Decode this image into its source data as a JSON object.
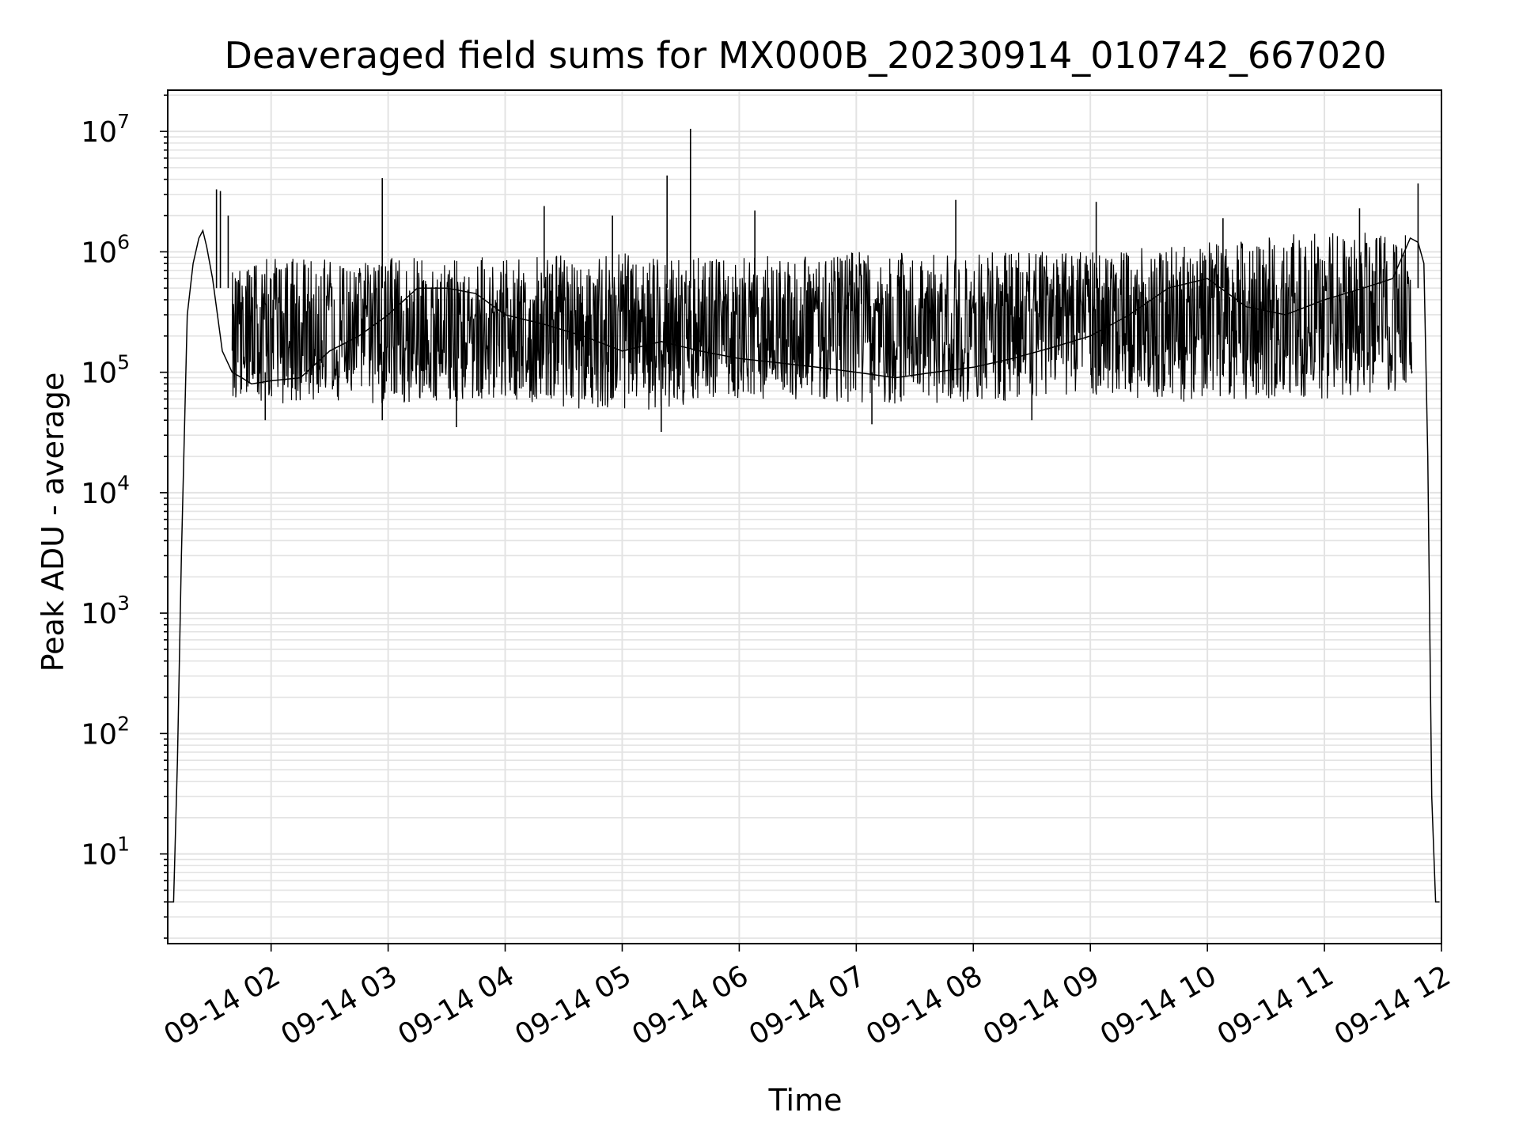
{
  "chart_data": {
    "type": "line",
    "title": "Deaveraged field sums for MX000B_20230914_010742_667020",
    "xlabel": "Time",
    "ylabel": "Peak ADU - average",
    "y_scale": "log",
    "ylim": [
      1.8,
      22000000
    ],
    "xlim": [
      "2023-09-14 01:07",
      "2023-09-14 12:00"
    ],
    "grid": true,
    "legend": "none",
    "line_color": "#000000",
    "x_tick_labels": [
      "09-14 02",
      "09-14 03",
      "09-14 04",
      "09-14 05",
      "09-14 06",
      "09-14 07",
      "09-14 08",
      "09-14 09",
      "09-14 10",
      "09-14 11",
      "09-14 12"
    ],
    "x_tick_times": [
      "2023-09-14 02:00",
      "2023-09-14 03:00",
      "2023-09-14 04:00",
      "2023-09-14 05:00",
      "2023-09-14 06:00",
      "2023-09-14 07:00",
      "2023-09-14 08:00",
      "2023-09-14 09:00",
      "2023-09-14 10:00",
      "2023-09-14 11:00",
      "2023-09-14 12:00"
    ],
    "y_ticks": [
      {
        "value": 10,
        "base": "10",
        "exp": "1"
      },
      {
        "value": 100,
        "base": "10",
        "exp": "2"
      },
      {
        "value": 1000,
        "base": "10",
        "exp": "3"
      },
      {
        "value": 10000,
        "base": "10",
        "exp": "4"
      },
      {
        "value": 100000,
        "base": "10",
        "exp": "5"
      },
      {
        "value": 1000000,
        "base": "10",
        "exp": "6"
      },
      {
        "value": 10000000,
        "base": "10",
        "exp": "7"
      }
    ],
    "series": [
      {
        "times": [
          "2023-09-14 01:07",
          "2023-09-14 01:08",
          "2023-09-14 01:10",
          "2023-09-14 01:12",
          "2023-09-14 01:14",
          "2023-09-14 01:17",
          "2023-09-14 01:20",
          "2023-09-14 01:23",
          "2023-09-14 01:25",
          "2023-09-14 01:27",
          "2023-09-14 01:30",
          "2023-09-14 01:35",
          "2023-09-14 01:40",
          "2023-09-14 01:45",
          "2023-09-14 01:50",
          "2023-09-14 02:00",
          "2023-09-14 02:15",
          "2023-09-14 02:30",
          "2023-09-14 02:45",
          "2023-09-14 03:00",
          "2023-09-14 03:15",
          "2023-09-14 03:30",
          "2023-09-14 03:45",
          "2023-09-14 04:00",
          "2023-09-14 04:20",
          "2023-09-14 04:40",
          "2023-09-14 05:00",
          "2023-09-14 05:20",
          "2023-09-14 05:40",
          "2023-09-14 06:00",
          "2023-09-14 06:20",
          "2023-09-14 06:40",
          "2023-09-14 07:00",
          "2023-09-14 07:20",
          "2023-09-14 07:40",
          "2023-09-14 08:00",
          "2023-09-14 08:20",
          "2023-09-14 08:40",
          "2023-09-14 09:00",
          "2023-09-14 09:20",
          "2023-09-14 09:40",
          "2023-09-14 10:00",
          "2023-09-14 10:20",
          "2023-09-14 10:40",
          "2023-09-14 11:00",
          "2023-09-14 11:20",
          "2023-09-14 11:35",
          "2023-09-14 11:44",
          "2023-09-14 11:48",
          "2023-09-14 11:51",
          "2023-09-14 11:53",
          "2023-09-14 11:55",
          "2023-09-14 11:57",
          "2023-09-14 11:59"
        ],
        "values": [
          4,
          4,
          4,
          60,
          3000,
          300000,
          800000,
          1300000,
          1500000,
          1100000,
          600000,
          150000,
          100000,
          90000,
          80000,
          85000,
          90000,
          150000,
          200000,
          300000,
          500000,
          500000,
          450000,
          300000,
          250000,
          200000,
          150000,
          180000,
          150000,
          130000,
          120000,
          110000,
          100000,
          90000,
          100000,
          110000,
          130000,
          160000,
          200000,
          300000,
          500000,
          600000,
          350000,
          300000,
          400000,
          500000,
          600000,
          1300000,
          1200000,
          800000,
          20000,
          30,
          4,
          4
        ]
      }
    ],
    "spikes": [
      {
        "time": "2023-09-14 01:32",
        "value": 3300000
      },
      {
        "time": "2023-09-14 01:34",
        "value": 3200000
      },
      {
        "time": "2023-09-14 01:38",
        "value": 2000000
      },
      {
        "time": "2023-09-14 02:57",
        "value": 4100000
      },
      {
        "time": "2023-09-14 04:20",
        "value": 2400000
      },
      {
        "time": "2023-09-14 04:55",
        "value": 2000000
      },
      {
        "time": "2023-09-14 05:23",
        "value": 4300000
      },
      {
        "time": "2023-09-14 05:35",
        "value": 10500000
      },
      {
        "time": "2023-09-14 06:08",
        "value": 2200000
      },
      {
        "time": "2023-09-14 07:51",
        "value": 2700000
      },
      {
        "time": "2023-09-14 09:03",
        "value": 2600000
      },
      {
        "time": "2023-09-14 10:08",
        "value": 1900000
      },
      {
        "time": "2023-09-14 11:18",
        "value": 2300000
      },
      {
        "time": "2023-09-14 11:48",
        "value": 3700000
      }
    ],
    "band_high": [
      {
        "time": "2023-09-14 01:40",
        "value": 700000
      },
      {
        "time": "2023-09-14 02:00",
        "value": 900000
      },
      {
        "time": "2023-09-14 03:00",
        "value": 900000
      },
      {
        "time": "2023-09-14 04:00",
        "value": 900000
      },
      {
        "time": "2023-09-14 05:00",
        "value": 1000000
      },
      {
        "time": "2023-09-14 06:00",
        "value": 900000
      },
      {
        "time": "2023-09-14 07:00",
        "value": 1000000
      },
      {
        "time": "2023-09-14 08:00",
        "value": 1000000
      },
      {
        "time": "2023-09-14 09:00",
        "value": 1000000
      },
      {
        "time": "2023-09-14 10:00",
        "value": 1200000
      },
      {
        "time": "2023-09-14 11:00",
        "value": 1500000
      },
      {
        "time": "2023-09-14 11:45",
        "value": 1400000
      }
    ],
    "band_low": [
      {
        "time": "2023-09-14 01:40",
        "value": 60000
      },
      {
        "time": "2023-09-14 02:00",
        "value": 55000
      },
      {
        "time": "2023-09-14 03:00",
        "value": 55000
      },
      {
        "time": "2023-09-14 04:00",
        "value": 60000
      },
      {
        "time": "2023-09-14 05:00",
        "value": 45000
      },
      {
        "time": "2023-09-14 06:00",
        "value": 60000
      },
      {
        "time": "2023-09-14 07:00",
        "value": 55000
      },
      {
        "time": "2023-09-14 08:00",
        "value": 55000
      },
      {
        "time": "2023-09-14 09:00",
        "value": 65000
      },
      {
        "time": "2023-09-14 10:00",
        "value": 55000
      },
      {
        "time": "2023-09-14 11:00",
        "value": 60000
      },
      {
        "time": "2023-09-14 11:45",
        "value": 70000
      }
    ],
    "dips": [
      {
        "time": "2023-09-14 01:57",
        "value": 40000
      },
      {
        "time": "2023-09-14 02:57",
        "value": 40000
      },
      {
        "time": "2023-09-14 03:35",
        "value": 35000
      },
      {
        "time": "2023-09-14 05:20",
        "value": 32000
      },
      {
        "time": "2023-09-14 07:08",
        "value": 37000
      },
      {
        "time": "2023-09-14 08:30",
        "value": 40000
      }
    ]
  }
}
